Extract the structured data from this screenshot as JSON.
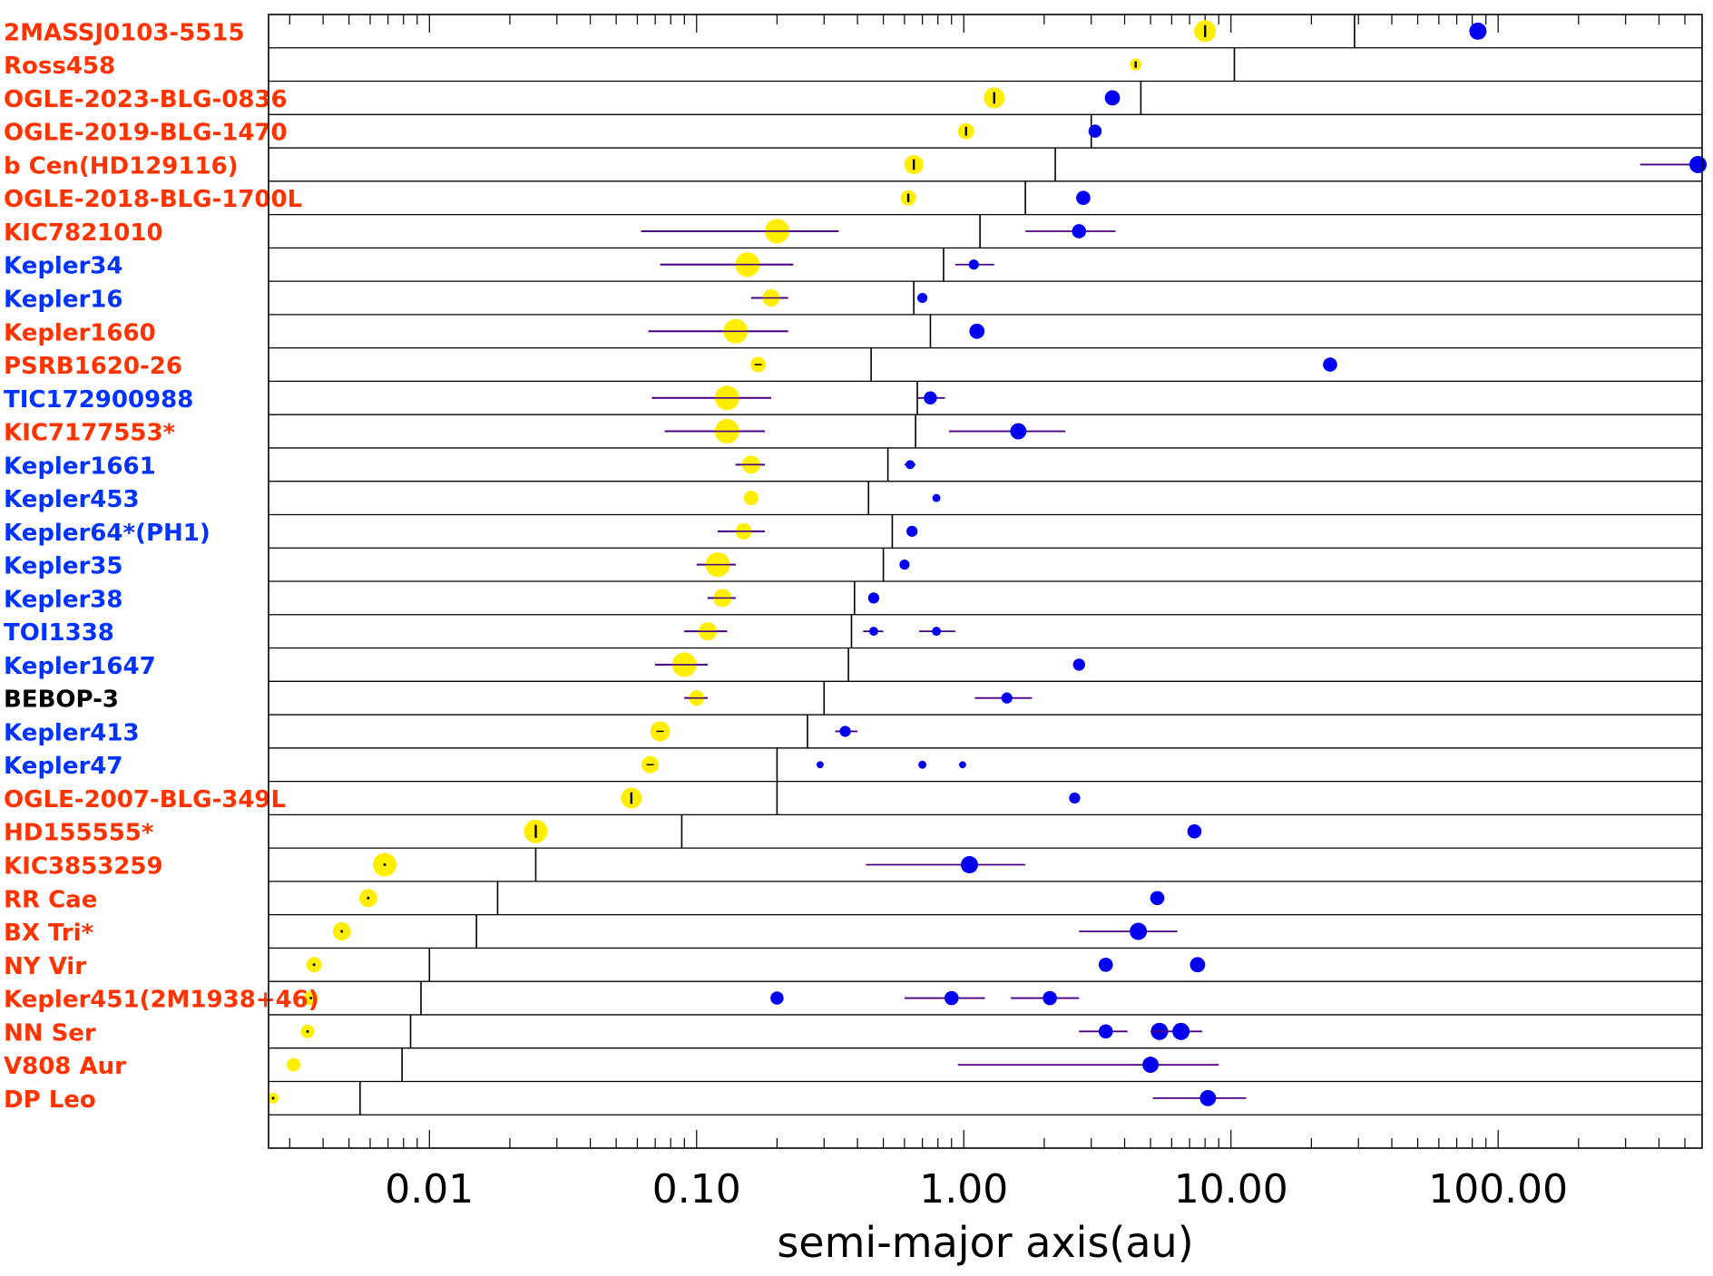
{
  "chart_data": {
    "type": "scatter",
    "xlabel": "semi-major axis(au)",
    "ylabel": "",
    "title": "",
    "x_scale": "log",
    "xlim": [
      0.0025,
      580
    ],
    "x_tick_labels": [
      {
        "value": 0.01,
        "label": "0.01"
      },
      {
        "value": 0.1,
        "label": "0.10"
      },
      {
        "value": 1,
        "label": "1.00"
      },
      {
        "value": 10,
        "label": "10.00"
      },
      {
        "value": 100,
        "label": "100.00"
      }
    ],
    "legend_colors": {
      "red_label": "#ff3300",
      "blue_label": "#0033ff",
      "black_label": "#000000"
    },
    "marker_colors": {
      "binary": "#ffee00",
      "planet": "#0000ee",
      "error_bar": "#4b0082"
    },
    "systems": [
      {
        "name": "2MASSJ0103-5515",
        "label_color": "#ff3300",
        "binary_a": 8.0,
        "binary_size": 2.4,
        "binary_mark": "bar",
        "stability_a": 29,
        "planets": [
          {
            "a": 84,
            "size": 1.6
          }
        ]
      },
      {
        "name": "Ross458",
        "label_color": "#ff3300",
        "binary_a": 4.4,
        "binary_size": 1.3,
        "binary_mark": "bar",
        "stability_a": 10.3,
        "planets": []
      },
      {
        "name": "OGLE-2023-BLG-0836",
        "label_color": "#ff3300",
        "binary_a": 1.3,
        "binary_size": 2.3,
        "binary_mark": "bar",
        "stability_a": 4.6,
        "planets": [
          {
            "a": 3.6,
            "size": 1.4
          }
        ]
      },
      {
        "name": "OGLE-2019-BLG-1470",
        "label_color": "#ff3300",
        "binary_a": 1.02,
        "binary_size": 1.8,
        "binary_mark": "bar",
        "stability_a": 3.0,
        "planets": [
          {
            "a": 3.1,
            "size": 1.2
          }
        ]
      },
      {
        "name": "b Cen(HD129116)",
        "label_color": "#ff3300",
        "binary_a": 0.65,
        "binary_size": 2.1,
        "binary_mark": "bar",
        "stability_a": 2.2,
        "planets": [
          {
            "a": 560,
            "size": 1.6,
            "err": [
              340,
              560
            ]
          }
        ]
      },
      {
        "name": "OGLE-2018-BLG-1700L",
        "label_color": "#ff3300",
        "binary_a": 0.62,
        "binary_size": 1.7,
        "binary_mark": "bar",
        "stability_a": 1.7,
        "planets": [
          {
            "a": 2.8,
            "size": 1.3
          }
        ]
      },
      {
        "name": "KIC7821010",
        "label_color": "#ff3300",
        "binary_a": 0.2,
        "binary_size": 2.7,
        "binary_mark": "none",
        "binary_err": [
          0.062,
          0.34
        ],
        "stability_a": 1.15,
        "planets": [
          {
            "a": 2.7,
            "size": 1.3,
            "err": [
              1.7,
              3.7
            ]
          }
        ]
      },
      {
        "name": "Kepler34",
        "label_color": "#0033ff",
        "binary_a": 0.155,
        "binary_size": 2.7,
        "binary_mark": "none",
        "binary_err": [
          0.073,
          0.23
        ],
        "stability_a": 0.84,
        "planets": [
          {
            "a": 1.09,
            "size": 0.9,
            "err": [
              0.93,
              1.3
            ]
          }
        ]
      },
      {
        "name": "Kepler16",
        "label_color": "#0033ff",
        "binary_a": 0.19,
        "binary_size": 1.9,
        "binary_mark": "none",
        "binary_err": [
          0.16,
          0.22
        ],
        "stability_a": 0.65,
        "planets": [
          {
            "a": 0.7,
            "size": 0.9
          }
        ]
      },
      {
        "name": "Kepler1660",
        "label_color": "#ff3300",
        "binary_a": 0.14,
        "binary_size": 2.7,
        "binary_mark": "none",
        "binary_err": [
          0.066,
          0.22
        ],
        "stability_a": 0.75,
        "planets": [
          {
            "a": 1.12,
            "size": 1.4
          }
        ]
      },
      {
        "name": "PSRB1620-26",
        "label_color": "#ff3300",
        "binary_a": 0.17,
        "binary_size": 1.7,
        "binary_mark": "dash",
        "stability_a": 0.45,
        "planets": [
          {
            "a": 23.5,
            "size": 1.3
          }
        ]
      },
      {
        "name": "TIC172900988",
        "label_color": "#0033ff",
        "binary_a": 0.13,
        "binary_size": 2.7,
        "binary_mark": "none",
        "binary_err": [
          0.068,
          0.19
        ],
        "stability_a": 0.67,
        "planets": [
          {
            "a": 0.75,
            "size": 1.2,
            "err": [
              0.67,
              0.85
            ]
          }
        ]
      },
      {
        "name": "KIC7177553*",
        "label_color": "#ff3300",
        "binary_a": 0.13,
        "binary_size": 2.7,
        "binary_mark": "none",
        "binary_err": [
          0.076,
          0.18
        ],
        "stability_a": 0.66,
        "planets": [
          {
            "a": 1.6,
            "size": 1.5,
            "err": [
              0.88,
              2.4
            ]
          }
        ]
      },
      {
        "name": "Kepler1661",
        "label_color": "#0033ff",
        "binary_a": 0.16,
        "binary_size": 2.0,
        "binary_mark": "none",
        "binary_err": [
          0.14,
          0.18
        ],
        "stability_a": 0.52,
        "planets": [
          {
            "a": 0.63,
            "size": 0.8,
            "err": [
              0.6,
              0.66
            ]
          }
        ]
      },
      {
        "name": "Kepler453",
        "label_color": "#0033ff",
        "binary_a": 0.16,
        "binary_size": 1.6,
        "binary_mark": "none",
        "stability_a": 0.44,
        "planets": [
          {
            "a": 0.79,
            "size": 0.7
          }
        ]
      },
      {
        "name": "Kepler64*(PH1)",
        "label_color": "#0033ff",
        "binary_a": 0.15,
        "binary_size": 1.8,
        "binary_mark": "none",
        "binary_err": [
          0.12,
          0.18
        ],
        "stability_a": 0.54,
        "planets": [
          {
            "a": 0.64,
            "size": 1.0
          }
        ]
      },
      {
        "name": "Kepler35",
        "label_color": "#0033ff",
        "binary_a": 0.12,
        "binary_size": 2.7,
        "binary_mark": "none",
        "binary_err": [
          0.1,
          0.14
        ],
        "stability_a": 0.5,
        "planets": [
          {
            "a": 0.6,
            "size": 0.9
          }
        ]
      },
      {
        "name": "Kepler38",
        "label_color": "#0033ff",
        "binary_a": 0.125,
        "binary_size": 2.0,
        "binary_mark": "none",
        "binary_err": [
          0.11,
          0.14
        ],
        "stability_a": 0.39,
        "planets": [
          {
            "a": 0.46,
            "size": 1.0
          }
        ]
      },
      {
        "name": "TOI1338",
        "label_color": "#0033ff",
        "binary_a": 0.11,
        "binary_size": 2.0,
        "binary_mark": "none",
        "binary_err": [
          0.09,
          0.13
        ],
        "stability_a": 0.38,
        "planets": [
          {
            "a": 0.46,
            "size": 0.8,
            "err": [
              0.42,
              0.5
            ]
          },
          {
            "a": 0.79,
            "size": 0.8,
            "err": [
              0.68,
              0.93
            ]
          }
        ]
      },
      {
        "name": "Kepler1647",
        "label_color": "#0033ff",
        "binary_a": 0.09,
        "binary_size": 2.7,
        "binary_mark": "none",
        "binary_err": [
          0.07,
          0.11
        ],
        "stability_a": 0.37,
        "planets": [
          {
            "a": 2.7,
            "size": 1.1
          }
        ]
      },
      {
        "name": "BEBOP-3",
        "label_color": "#000000",
        "binary_a": 0.1,
        "binary_size": 1.7,
        "binary_mark": "none",
        "binary_err": [
          0.09,
          0.11
        ],
        "stability_a": 0.3,
        "planets": [
          {
            "a": 1.45,
            "size": 1.0,
            "err": [
              1.1,
              1.8
            ]
          }
        ]
      },
      {
        "name": "Kepler413",
        "label_color": "#0033ff",
        "binary_a": 0.073,
        "binary_size": 2.2,
        "binary_mark": "dash",
        "stability_a": 0.26,
        "planets": [
          {
            "a": 0.36,
            "size": 1.0,
            "err": [
              0.33,
              0.4
            ]
          }
        ]
      },
      {
        "name": "Kepler47",
        "label_color": "#0033ff",
        "binary_a": 0.067,
        "binary_size": 1.9,
        "binary_mark": "dash",
        "stability_a": 0.2,
        "planets": [
          {
            "a": 0.29,
            "size": 0.6
          },
          {
            "a": 0.7,
            "size": 0.7
          },
          {
            "a": 0.99,
            "size": 0.6
          }
        ]
      },
      {
        "name": "OGLE-2007-BLG-349L",
        "label_color": "#ff3300",
        "binary_a": 0.057,
        "binary_size": 2.3,
        "binary_mark": "bar",
        "stability_a": 0.2,
        "planets": [
          {
            "a": 2.6,
            "size": 1.0
          }
        ]
      },
      {
        "name": "HD155555*",
        "label_color": "#ff3300",
        "binary_a": 0.025,
        "binary_size": 2.6,
        "binary_mark": "bar",
        "stability_a": 0.088,
        "planets": [
          {
            "a": 7.3,
            "size": 1.3
          }
        ]
      },
      {
        "name": "KIC3853259",
        "label_color": "#ff3300",
        "binary_a": 0.0068,
        "binary_size": 2.6,
        "binary_mark": "dot",
        "stability_a": 0.025,
        "planets": [
          {
            "a": 1.05,
            "size": 1.6,
            "err": [
              0.43,
              1.7
            ]
          }
        ]
      },
      {
        "name": "RR Cae",
        "label_color": "#ff3300",
        "binary_a": 0.0059,
        "binary_size": 2.0,
        "binary_mark": "dot",
        "stability_a": 0.018,
        "planets": [
          {
            "a": 5.3,
            "size": 1.3
          }
        ]
      },
      {
        "name": "BX Tri*",
        "label_color": "#ff3300",
        "binary_a": 0.0047,
        "binary_size": 2.0,
        "binary_mark": "dot",
        "stability_a": 0.015,
        "planets": [
          {
            "a": 4.5,
            "size": 1.6,
            "err": [
              2.7,
              6.3
            ]
          }
        ]
      },
      {
        "name": "NY Vir",
        "label_color": "#ff3300",
        "binary_a": 0.0037,
        "binary_size": 1.7,
        "binary_mark": "dot",
        "stability_a": 0.01,
        "planets": [
          {
            "a": 3.4,
            "size": 1.3
          },
          {
            "a": 7.5,
            "size": 1.4
          }
        ]
      },
      {
        "name": "Kepler451(2M1938+46)",
        "label_color": "#ff3300",
        "binary_a": 0.0036,
        "binary_size": 1.6,
        "binary_mark": "dot",
        "stability_a": 0.0093,
        "planets": [
          {
            "a": 0.2,
            "size": 1.2
          },
          {
            "a": 0.9,
            "size": 1.3,
            "err": [
              0.6,
              1.2
            ]
          },
          {
            "a": 2.1,
            "size": 1.3,
            "err": [
              1.5,
              2.7
            ]
          }
        ]
      },
      {
        "name": "NN Ser",
        "label_color": "#ff3300",
        "binary_a": 0.0035,
        "binary_size": 1.5,
        "binary_mark": "dot",
        "stability_a": 0.0085,
        "planets": [
          {
            "a": 3.4,
            "size": 1.3,
            "err": [
              2.7,
              4.1
            ]
          },
          {
            "a": 5.4,
            "size": 1.6
          },
          {
            "a": 6.5,
            "size": 1.6,
            "err": [
              5.0,
              7.8
            ]
          }
        ]
      },
      {
        "name": "V808 Aur",
        "label_color": "#ff3300",
        "binary_a": 0.0031,
        "binary_size": 1.5,
        "binary_mark": "none",
        "stability_a": 0.0079,
        "planets": [
          {
            "a": 5.0,
            "size": 1.5,
            "err": [
              0.95,
              9.0
            ]
          }
        ]
      },
      {
        "name": "DP Leo",
        "label_color": "#ff3300",
        "binary_a": 0.0026,
        "binary_size": 1.2,
        "binary_mark": "dot",
        "stability_a": 0.0055,
        "planets": [
          {
            "a": 8.2,
            "size": 1.5,
            "err": [
              5.1,
              11.4
            ]
          }
        ]
      }
    ]
  }
}
